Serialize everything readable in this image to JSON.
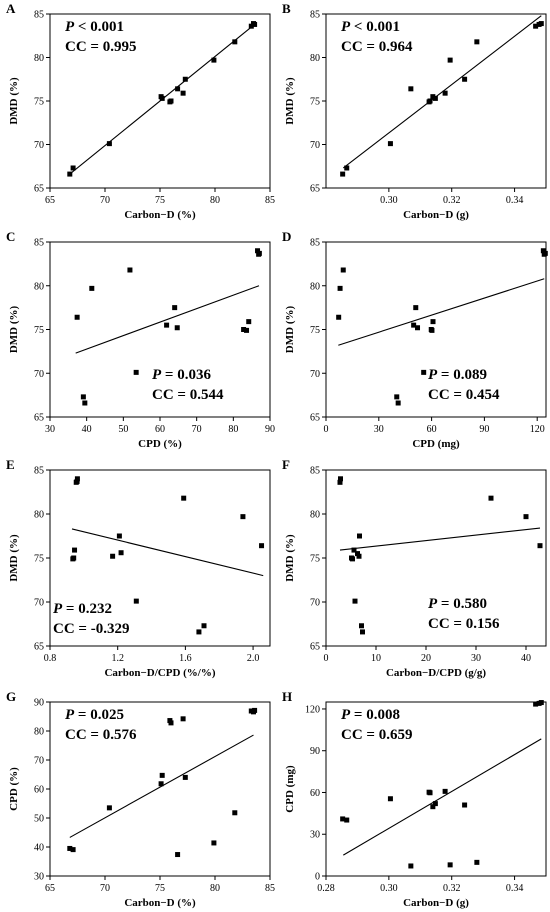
{
  "chart_data": [
    {
      "type": "scatter",
      "panel_label": "A",
      "xlabel": "Carbon−D (%)",
      "ylabel": "DMD (%)",
      "xlim": [
        65,
        85
      ],
      "ylim": [
        65,
        85
      ],
      "xticks": [
        65,
        70,
        75,
        80,
        85
      ],
      "yticks": [
        65,
        70,
        75,
        80,
        85
      ],
      "stat_p": "P < 0.001",
      "stat_cc": "CC = 0.995",
      "stat_pos": "top-left",
      "points": [
        [
          66.8,
          66.6
        ],
        [
          67.1,
          67.3
        ],
        [
          70.4,
          70.1
        ],
        [
          75.1,
          75.5
        ],
        [
          75.2,
          75.3
        ],
        [
          75.9,
          74.9
        ],
        [
          76.0,
          75.0
        ],
        [
          76.6,
          76.4
        ],
        [
          77.1,
          75.9
        ],
        [
          77.3,
          77.5
        ],
        [
          79.9,
          79.7
        ],
        [
          81.8,
          81.8
        ],
        [
          83.3,
          83.6
        ],
        [
          83.5,
          83.9
        ],
        [
          83.6,
          83.8
        ]
      ],
      "fit": [
        [
          66.8,
          66.6
        ],
        [
          83.6,
          83.8
        ]
      ]
    },
    {
      "type": "scatter",
      "panel_label": "B",
      "xlabel": "Carbon−D (g)",
      "ylabel": "DMD (%)",
      "xlim": [
        0.28,
        0.35
      ],
      "ylim": [
        65,
        85
      ],
      "xticks": [
        0.3,
        0.32,
        0.34
      ],
      "xtick_labels": [
        "0.30",
        "0.32",
        "0.34"
      ],
      "yticks": [
        65,
        70,
        75,
        80,
        85
      ],
      "stat_p": "P < 0.001",
      "stat_cc": "CC = 0.964",
      "stat_pos": "top-left",
      "points": [
        [
          0.2853,
          66.6
        ],
        [
          0.2866,
          67.3
        ],
        [
          0.3005,
          70.1
        ],
        [
          0.307,
          76.4
        ],
        [
          0.3128,
          74.9
        ],
        [
          0.3131,
          75.0
        ],
        [
          0.314,
          75.5
        ],
        [
          0.3148,
          75.3
        ],
        [
          0.3179,
          75.9
        ],
        [
          0.3195,
          79.7
        ],
        [
          0.3241,
          77.5
        ],
        [
          0.328,
          81.8
        ],
        [
          0.3467,
          83.6
        ],
        [
          0.3478,
          83.8
        ],
        [
          0.3485,
          83.9
        ]
      ],
      "fit": [
        [
          0.2855,
          67.3
        ],
        [
          0.3485,
          84.8
        ]
      ]
    },
    {
      "type": "scatter",
      "panel_label": "C",
      "xlabel": "CPD (%)",
      "ylabel": "DMD (%)",
      "xlim": [
        30,
        90
      ],
      "ylim": [
        65,
        85
      ],
      "xticks": [
        30,
        40,
        50,
        60,
        70,
        80,
        90
      ],
      "yticks": [
        65,
        70,
        75,
        80,
        85
      ],
      "stat_p": "P = 0.036",
      "stat_cc": "CC = 0.544",
      "stat_pos": "bottom-right",
      "points": [
        [
          37.4,
          76.4
        ],
        [
          39.1,
          67.3
        ],
        [
          39.5,
          66.6
        ],
        [
          41.4,
          79.7
        ],
        [
          51.8,
          81.8
        ],
        [
          53.5,
          70.1
        ],
        [
          61.8,
          75.5
        ],
        [
          64.0,
          77.5
        ],
        [
          64.7,
          75.2
        ],
        [
          82.8,
          75.0
        ],
        [
          83.6,
          74.9
        ],
        [
          84.2,
          75.9
        ],
        [
          86.6,
          84.0
        ],
        [
          86.9,
          83.6
        ],
        [
          87.1,
          83.7
        ]
      ],
      "fit": [
        [
          37.0,
          72.3
        ],
        [
          87.0,
          80.0
        ]
      ]
    },
    {
      "type": "scatter",
      "panel_label": "D",
      "xlabel": "CPD (mg)",
      "ylabel": "DMD (%)",
      "xlim": [
        0,
        125
      ],
      "ylim": [
        65,
        85
      ],
      "xticks": [
        0,
        30,
        60,
        90,
        120
      ],
      "yticks": [
        65,
        70,
        75,
        80,
        85
      ],
      "stat_p": "P = 0.089",
      "stat_cc": "CC = 0.454",
      "stat_pos": "bottom-right",
      "points": [
        [
          7.2,
          76.4
        ],
        [
          8.0,
          79.7
        ],
        [
          9.8,
          81.8
        ],
        [
          40.2,
          67.3
        ],
        [
          41.0,
          66.6
        ],
        [
          49.8,
          75.5
        ],
        [
          51.0,
          77.5
        ],
        [
          52.0,
          75.2
        ],
        [
          55.5,
          70.1
        ],
        [
          59.8,
          75.0
        ],
        [
          60.2,
          74.9
        ],
        [
          60.8,
          75.9
        ],
        [
          123.5,
          84.0
        ],
        [
          124.0,
          83.6
        ],
        [
          124.6,
          83.7
        ]
      ],
      "fit": [
        [
          7.0,
          73.2
        ],
        [
          124.0,
          80.8
        ]
      ]
    },
    {
      "type": "scatter",
      "panel_label": "E",
      "xlabel": "Carbon−D/CPD (%/%)",
      "ylabel": "DMD (%)",
      "xlim": [
        0.8,
        2.1
      ],
      "ylim": [
        65,
        85
      ],
      "xticks": [
        0.8,
        1.2,
        1.6,
        2.0
      ],
      "xtick_labels": [
        "0.8",
        "1.2",
        "1.6",
        "2.0"
      ],
      "yticks": [
        65,
        70,
        75,
        80,
        85
      ],
      "stat_p": "P = 0.232",
      "stat_cc": "CC = -0.329",
      "stat_pos": "bottom-left",
      "points": [
        [
          0.935,
          74.9
        ],
        [
          0.94,
          75.0
        ],
        [
          0.945,
          75.9
        ],
        [
          0.955,
          83.6
        ],
        [
          0.96,
          83.7
        ],
        [
          0.962,
          84.0
        ],
        [
          1.17,
          75.2
        ],
        [
          1.21,
          77.5
        ],
        [
          1.22,
          75.6
        ],
        [
          1.31,
          70.1
        ],
        [
          1.59,
          81.8
        ],
        [
          1.68,
          66.6
        ],
        [
          1.71,
          67.3
        ],
        [
          1.94,
          79.7
        ],
        [
          2.05,
          76.4
        ]
      ],
      "fit": [
        [
          0.93,
          78.3
        ],
        [
          2.06,
          73.0
        ]
      ]
    },
    {
      "type": "scatter",
      "panel_label": "F",
      "xlabel": "Carbon−D/CPD (g/g)",
      "ylabel": "DMD (%)",
      "xlim": [
        0,
        44
      ],
      "ylim": [
        65,
        85
      ],
      "xticks": [
        0,
        10,
        20,
        30,
        40
      ],
      "yticks": [
        65,
        70,
        75,
        80,
        85
      ],
      "stat_p": "P = 0.580",
      "stat_cc": "CC = 0.156",
      "stat_pos": "bottom-right",
      "points": [
        [
          2.8,
          83.6
        ],
        [
          2.9,
          84.0
        ],
        [
          5.1,
          75.0
        ],
        [
          5.3,
          74.9
        ],
        [
          5.6,
          75.9
        ],
        [
          5.8,
          70.1
        ],
        [
          6.3,
          75.5
        ],
        [
          6.6,
          75.2
        ],
        [
          6.7,
          77.5
        ],
        [
          7.1,
          67.3
        ],
        [
          7.3,
          66.6
        ],
        [
          33.0,
          81.8
        ],
        [
          40.0,
          79.7
        ],
        [
          42.8,
          76.4
        ]
      ],
      "fit": [
        [
          2.8,
          75.9
        ],
        [
          42.8,
          78.4
        ]
      ]
    },
    {
      "type": "scatter",
      "panel_label": "G",
      "xlabel": "Carbon−D (%)",
      "ylabel": "CPD (%)",
      "xlim": [
        65,
        85
      ],
      "ylim": [
        30,
        90
      ],
      "xticks": [
        65,
        70,
        75,
        80,
        85
      ],
      "yticks": [
        30,
        40,
        50,
        60,
        70,
        80,
        90
      ],
      "stat_p": "P = 0.025",
      "stat_cc": "CC = 0.576",
      "stat_pos": "top-left",
      "points": [
        [
          66.8,
          39.5
        ],
        [
          67.1,
          39.1
        ],
        [
          70.4,
          53.5
        ],
        [
          75.1,
          61.8
        ],
        [
          75.2,
          64.7
        ],
        [
          75.9,
          83.6
        ],
        [
          76.0,
          82.8
        ],
        [
          76.6,
          37.4
        ],
        [
          77.1,
          84.2
        ],
        [
          77.3,
          64.0
        ],
        [
          79.9,
          41.4
        ],
        [
          81.8,
          51.8
        ],
        [
          83.3,
          86.9
        ],
        [
          83.5,
          86.6
        ],
        [
          83.6,
          87.1
        ]
      ],
      "fit": [
        [
          66.8,
          43.3
        ],
        [
          83.5,
          78.6
        ]
      ]
    },
    {
      "type": "scatter",
      "panel_label": "H",
      "xlabel": "Carbon−D (g)",
      "ylabel": "CPD (mg)",
      "xlim": [
        0.28,
        0.35
      ],
      "ylim": [
        0,
        125
      ],
      "xticks": [
        0.28,
        0.3,
        0.32,
        0.34
      ],
      "xtick_labels": [
        "0.28",
        "0.30",
        "0.32",
        "0.34"
      ],
      "yticks": [
        0,
        30,
        60,
        90,
        120
      ],
      "stat_p": "P = 0.008",
      "stat_cc": "CC = 0.659",
      "stat_pos": "top-left",
      "points": [
        [
          0.2853,
          41.0
        ],
        [
          0.2866,
          40.2
        ],
        [
          0.3005,
          55.5
        ],
        [
          0.307,
          7.2
        ],
        [
          0.3128,
          60.2
        ],
        [
          0.3131,
          59.8
        ],
        [
          0.314,
          49.8
        ],
        [
          0.3148,
          52.0
        ],
        [
          0.3179,
          60.8
        ],
        [
          0.3195,
          8.0
        ],
        [
          0.3241,
          51.0
        ],
        [
          0.328,
          9.8
        ],
        [
          0.3467,
          123.5
        ],
        [
          0.3478,
          124.0
        ],
        [
          0.3485,
          124.6
        ]
      ],
      "fit": [
        [
          0.2855,
          15.0
        ],
        [
          0.3485,
          98.5
        ]
      ]
    }
  ]
}
